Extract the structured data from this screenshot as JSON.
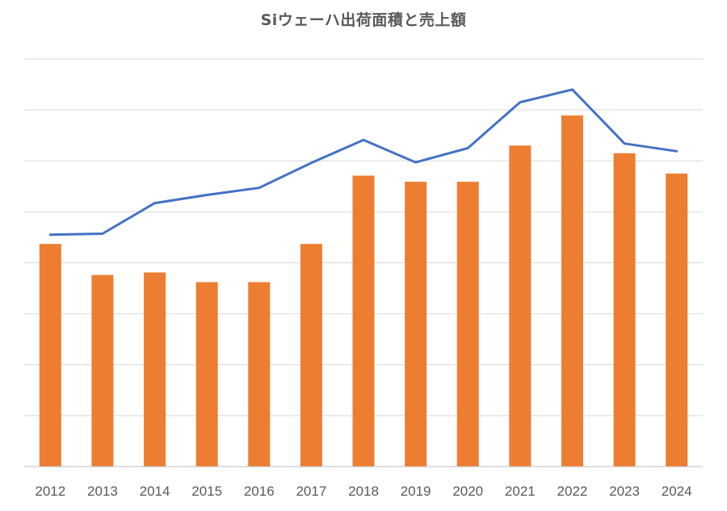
{
  "chart_data": {
    "type": "bar",
    "title": "Siウェーハ出荷面積と売上額",
    "categories": [
      "2012",
      "2013",
      "2014",
      "2015",
      "2016",
      "2017",
      "2018",
      "2019",
      "2020",
      "2021",
      "2022",
      "2023",
      "2024"
    ],
    "series": [
      {
        "type": "bar",
        "values": [
          4.37,
          3.76,
          3.81,
          3.62,
          3.62,
          4.37,
          5.71,
          5.59,
          5.59,
          6.3,
          6.89,
          6.15,
          5.75
        ]
      },
      {
        "type": "line",
        "values": [
          4.55,
          4.57,
          5.17,
          5.33,
          5.47,
          5.96,
          6.41,
          5.97,
          6.25,
          7.15,
          7.4,
          6.34,
          6.19
        ]
      }
    ],
    "ylim": [
      0,
      8
    ],
    "grid": true,
    "colors": {
      "bar": "#ED7D31",
      "line": "#4472C4",
      "grid": "#D9D9D9",
      "axis": "#BFBFBF"
    }
  }
}
